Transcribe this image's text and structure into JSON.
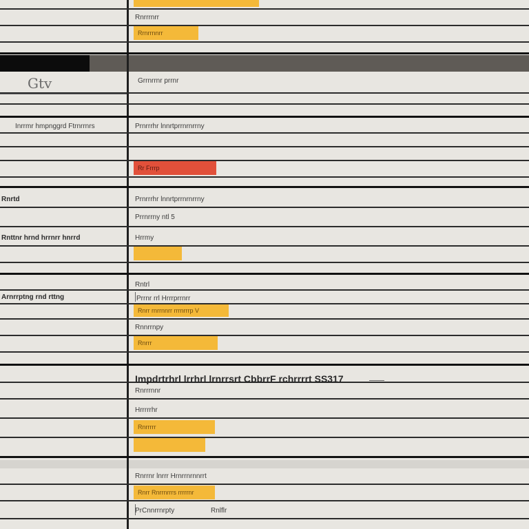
{
  "header": {
    "logo": "Gtv"
  },
  "left_column": {
    "row_labels": [
      "Inrrmr hmpnggrd Ftrnrrnrs",
      "Rnrtd",
      "Rnttnr hrnd hrrnrr hnrrd",
      "Arnrrptng rnd rttng"
    ]
  },
  "right_column": {
    "labels": [
      "Rnrrrnrr",
      "Grrnrrnr prrnr",
      "Prnrrrhr lnnrtprrnrnrrny",
      "Prrnrrny ntl 5",
      "Hrrmy",
      "Rntrl",
      "Prrnr rrl Hrrrprrnrr",
      "Rnnrrnpy",
      "Rnrrrnnr",
      "Hrrrrrhr",
      "Rnrrnr lnrrr Hrnrrnrnnrrt",
      "PrCnnrrnrpty",
      "Rnlflr"
    ],
    "heading": "Impdrtrhrl lrrhrl lrnrrsrt CbbrrF rchrrrrt SS317",
    "tags": [
      {
        "text": ""
      },
      {
        "text": "Rrnrrnnrr"
      },
      {
        "text": "Rr Frrrp"
      },
      {
        "text": ""
      },
      {
        "text": "Rnrr rnrrnnrr rrrnrrrp V"
      },
      {
        "text": "Rnrrr"
      },
      {
        "text": "Rnrrrrr"
      },
      {
        "text": ""
      },
      {
        "text": "Rnrr Rnrrnrrrs rrrrrnr"
      }
    ]
  },
  "colors": {
    "tag_yellow": "#f4b939",
    "tag_red": "#e1503a",
    "grid_line": "#2b2b2b",
    "background": "#e8e6e1"
  }
}
